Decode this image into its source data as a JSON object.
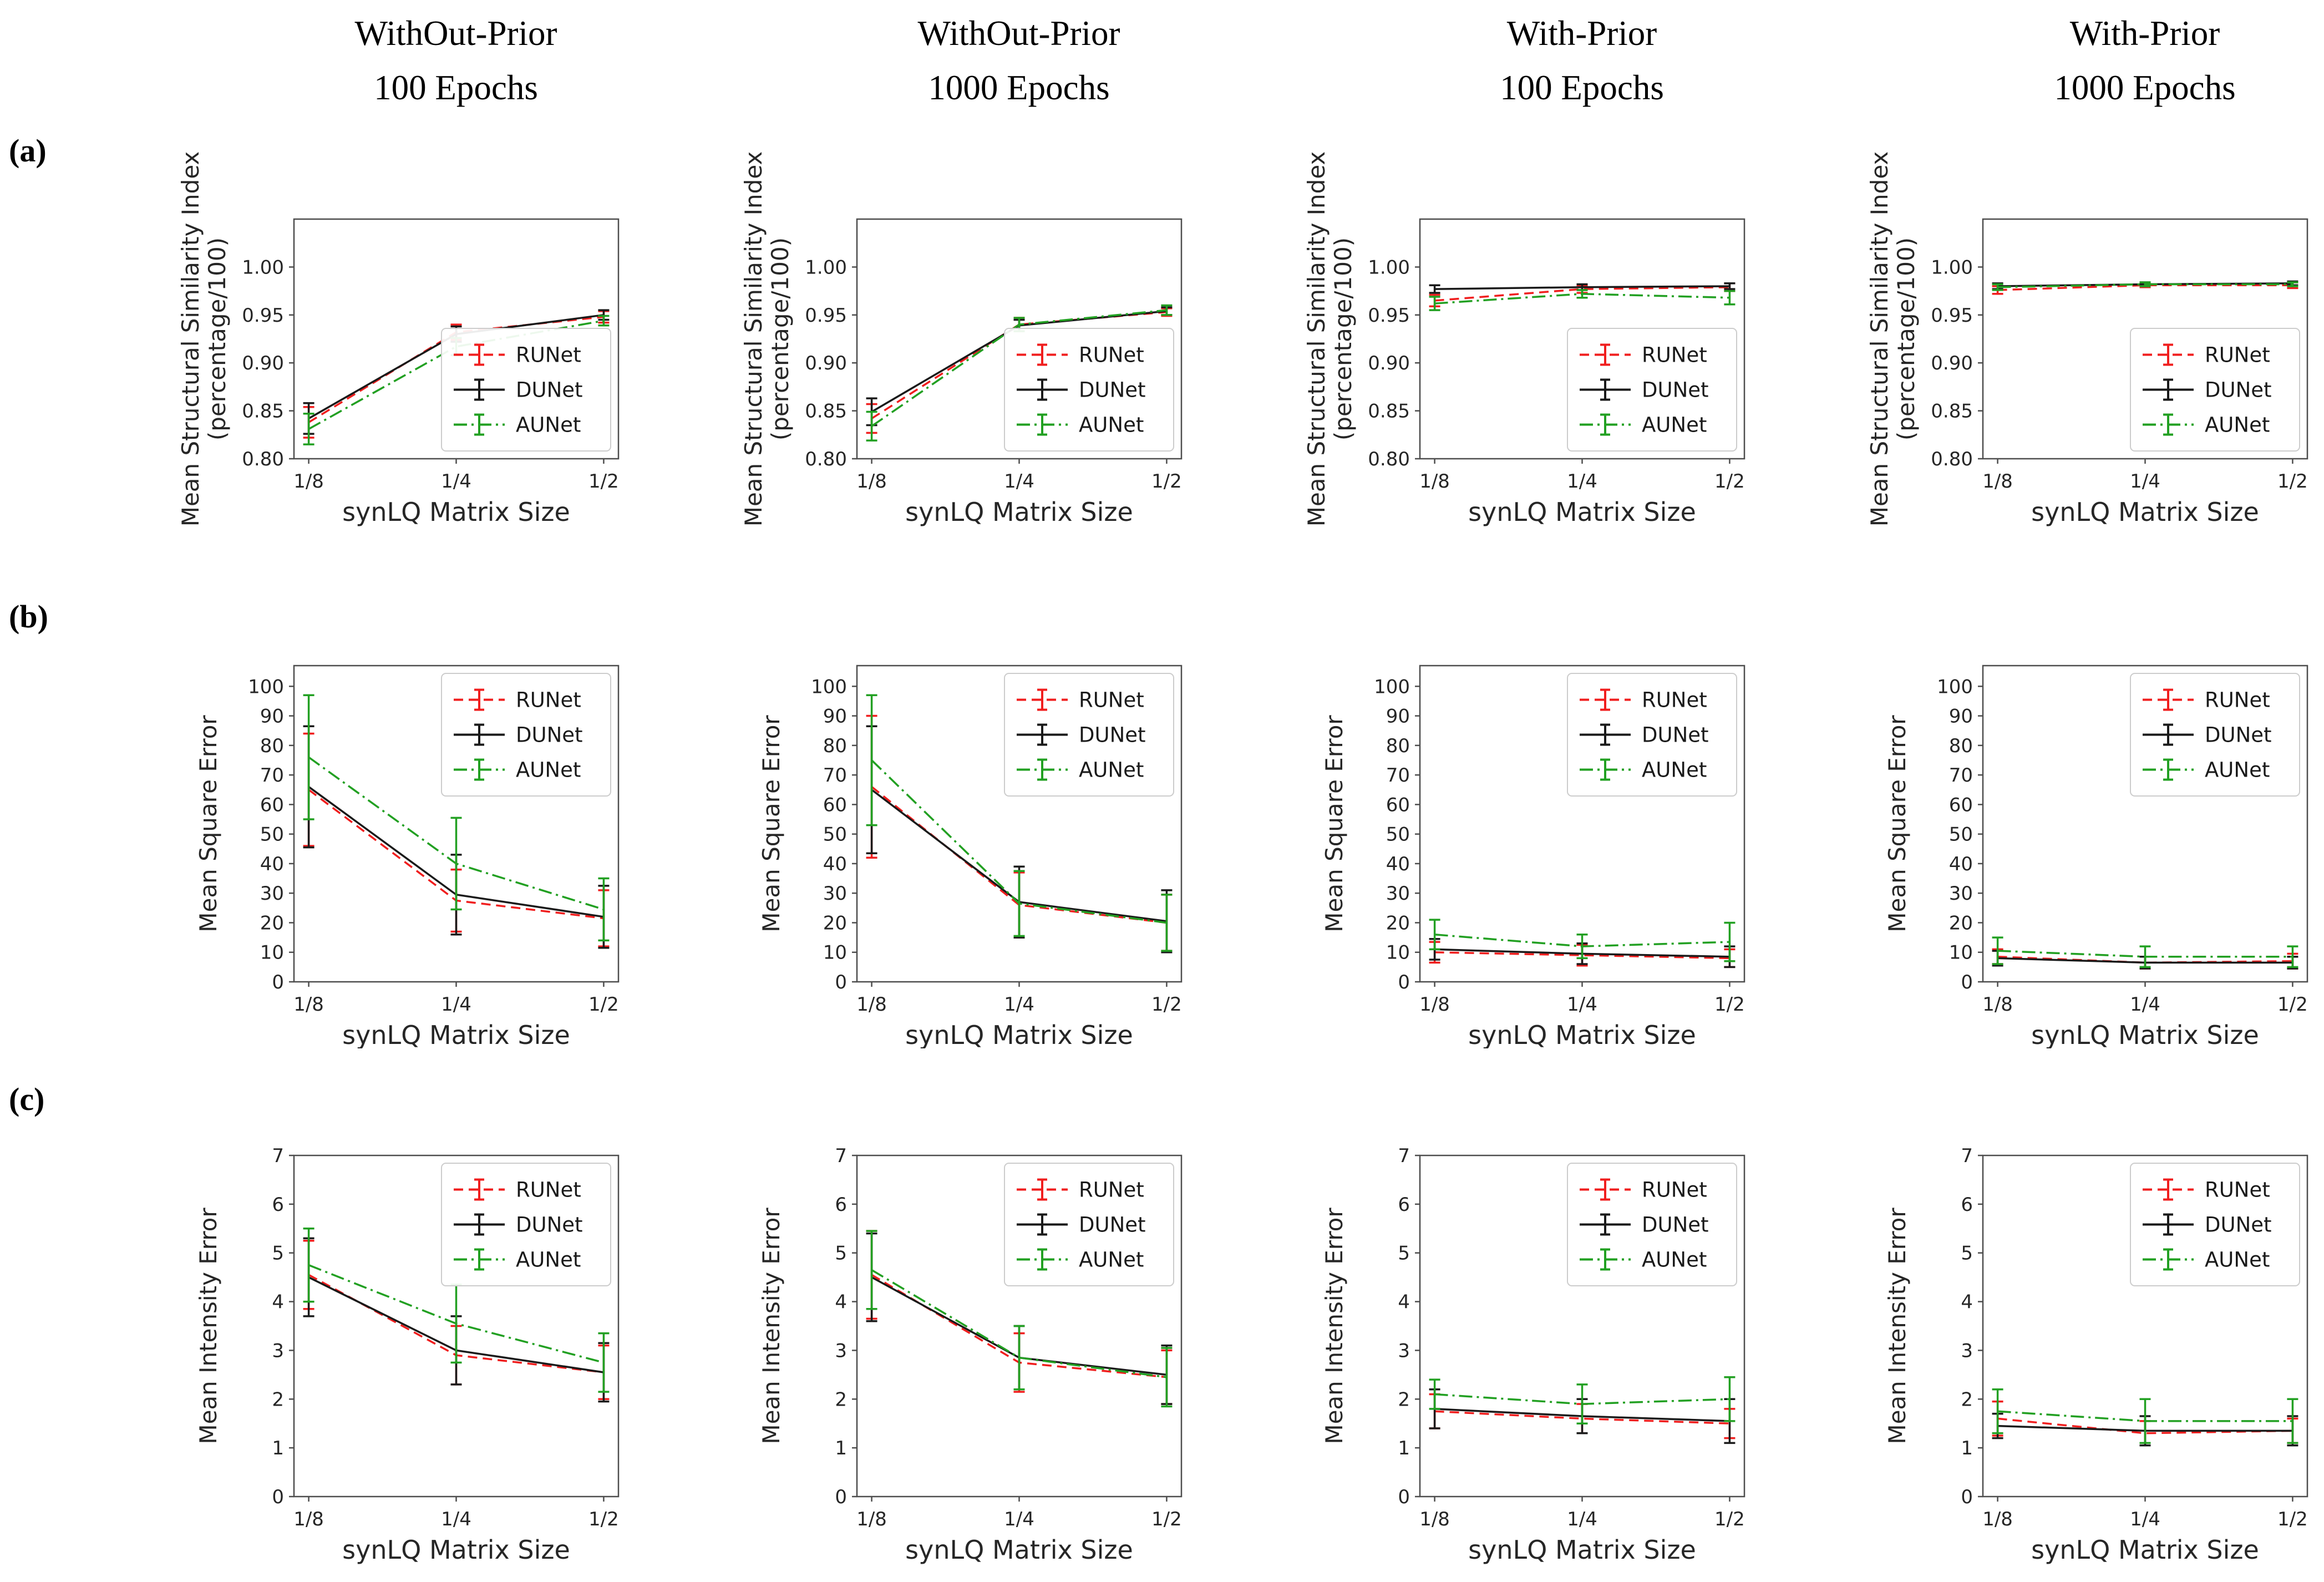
{
  "figure": {
    "columns": [
      {
        "title_lines": [
          "WithOut-Prior",
          "100 Epochs"
        ]
      },
      {
        "title_lines": [
          "WithOut-Prior",
          "1000 Epochs"
        ]
      },
      {
        "title_lines": [
          "With-Prior",
          "100 Epochs"
        ]
      },
      {
        "title_lines": [
          "With-Prior",
          "1000 Epochs"
        ]
      }
    ],
    "rows": [
      {
        "label": "(a)",
        "metric": "Mean Structural Similarity Index (percentage/100)"
      },
      {
        "label": "(b)",
        "metric": "Mean Square Error"
      },
      {
        "label": "(c)",
        "metric": "Mean Intensity Error"
      }
    ],
    "xlabel": "synLQ Matrix Size",
    "x_ticklabels": [
      "1/8",
      "1/4",
      "1/2"
    ]
  },
  "series_styles": [
    {
      "name": "RUNet",
      "color": "#f01e1e",
      "dash": "dashed"
    },
    {
      "name": "DUNet",
      "color": "#1a1a1a",
      "dash": "solid"
    },
    {
      "name": "AUNet",
      "color": "#22a022",
      "dash": "dashdot"
    }
  ],
  "axis_colors": {
    "spine": "#4d4d4d",
    "text": "#262626"
  },
  "chart_data": [
    {
      "id": "a1",
      "row": "a",
      "col": 0,
      "type": "line",
      "title": "WithOut-Prior 100 Epochs",
      "xlabel": "synLQ Matrix Size",
      "ylabel_lines": [
        "Mean Structural Similarity Index",
        "(percentage/100)"
      ],
      "x_ticklabels": [
        "1/8",
        "1/4",
        "1/2"
      ],
      "ylim": [
        0.8,
        1.05
      ],
      "yticks": [
        0.8,
        0.85,
        0.9,
        0.95,
        1.0
      ],
      "ytick_labels": [
        "0.80",
        "0.85",
        "0.90",
        "0.95",
        "1.00"
      ],
      "legend_position": "lower right",
      "series": [
        {
          "name": "RUNet",
          "values": [
            0.838,
            0.932,
            0.948
          ],
          "err": [
            0.016,
            0.008,
            0.006
          ]
        },
        {
          "name": "DUNet",
          "values": [
            0.842,
            0.93,
            0.95
          ],
          "err": [
            0.016,
            0.008,
            0.005
          ]
        },
        {
          "name": "AUNet",
          "values": [
            0.831,
            0.917,
            0.944
          ],
          "err": [
            0.016,
            0.009,
            0.005
          ]
        }
      ]
    },
    {
      "id": "a2",
      "row": "a",
      "col": 1,
      "type": "line",
      "title": "WithOut-Prior 1000 Epochs",
      "xlabel": "synLQ Matrix Size",
      "ylabel_lines": [
        "Mean Structural Similarity Index",
        "(percentage/100)"
      ],
      "x_ticklabels": [
        "1/8",
        "1/4",
        "1/2"
      ],
      "ylim": [
        0.8,
        1.05
      ],
      "yticks": [
        0.8,
        0.85,
        0.9,
        0.95,
        1.0
      ],
      "ytick_labels": [
        "0.80",
        "0.85",
        "0.90",
        "0.95",
        "1.00"
      ],
      "legend_position": "lower right",
      "series": [
        {
          "name": "RUNet",
          "values": [
            0.842,
            0.94,
            0.953
          ],
          "err": [
            0.015,
            0.007,
            0.004
          ]
        },
        {
          "name": "DUNet",
          "values": [
            0.849,
            0.939,
            0.954
          ],
          "err": [
            0.014,
            0.006,
            0.004
          ]
        },
        {
          "name": "AUNet",
          "values": [
            0.834,
            0.94,
            0.955
          ],
          "err": [
            0.015,
            0.007,
            0.005
          ]
        }
      ]
    },
    {
      "id": "a3",
      "row": "a",
      "col": 2,
      "type": "line",
      "title": "With-Prior 100 Epochs",
      "xlabel": "synLQ Matrix Size",
      "ylabel_lines": [
        "Mean Structural Similarity Index",
        "(percentage/100)"
      ],
      "x_ticklabels": [
        "1/8",
        "1/4",
        "1/2"
      ],
      "ylim": [
        0.8,
        1.05
      ],
      "yticks": [
        0.8,
        0.85,
        0.9,
        0.95,
        1.0
      ],
      "ytick_labels": [
        "0.80",
        "0.85",
        "0.90",
        "0.95",
        "1.00"
      ],
      "legend_position": "lower right",
      "series": [
        {
          "name": "RUNet",
          "values": [
            0.965,
            0.977,
            0.979
          ],
          "err": [
            0.006,
            0.004,
            0.004
          ]
        },
        {
          "name": "DUNet",
          "values": [
            0.977,
            0.979,
            0.98
          ],
          "err": [
            0.004,
            0.003,
            0.003
          ]
        },
        {
          "name": "AUNet",
          "values": [
            0.962,
            0.972,
            0.968
          ],
          "err": [
            0.007,
            0.004,
            0.007
          ]
        }
      ]
    },
    {
      "id": "a4",
      "row": "a",
      "col": 3,
      "type": "line",
      "title": "With-Prior 1000 Epochs",
      "xlabel": "synLQ Matrix Size",
      "ylabel_lines": [
        "Mean Structural Similarity Index",
        "(percentage/100)"
      ],
      "x_ticklabels": [
        "1/8",
        "1/4",
        "1/2"
      ],
      "ylim": [
        0.8,
        1.05
      ],
      "yticks": [
        0.8,
        0.85,
        0.9,
        0.95,
        1.0
      ],
      "ytick_labels": [
        "0.80",
        "0.85",
        "0.90",
        "0.95",
        "1.00"
      ],
      "legend_position": "lower right",
      "series": [
        {
          "name": "RUNet",
          "values": [
            0.976,
            0.981,
            0.981
          ],
          "err": [
            0.004,
            0.002,
            0.003
          ]
        },
        {
          "name": "DUNet",
          "values": [
            0.98,
            0.982,
            0.983
          ],
          "err": [
            0.003,
            0.002,
            0.002
          ]
        },
        {
          "name": "AUNet",
          "values": [
            0.979,
            0.982,
            0.982
          ],
          "err": [
            0.003,
            0.002,
            0.002
          ]
        }
      ]
    },
    {
      "id": "b1",
      "row": "b",
      "col": 0,
      "type": "line",
      "title": "WithOut-Prior 100 Epochs",
      "xlabel": "synLQ Matrix Size",
      "ylabel_lines": [
        "Mean Square Error"
      ],
      "x_ticklabels": [
        "1/8",
        "1/4",
        "1/2"
      ],
      "ylim": [
        0,
        107
      ],
      "yticks": [
        0,
        10,
        20,
        30,
        40,
        50,
        60,
        70,
        80,
        90,
        100
      ],
      "ytick_labels": [
        "0",
        "10",
        "20",
        "30",
        "40",
        "50",
        "60",
        "70",
        "80",
        "90",
        "100"
      ],
      "legend_position": "upper right",
      "series": [
        {
          "name": "RUNet",
          "values": [
            65,
            27.5,
            21.5
          ],
          "err": [
            19,
            10.5,
            9.5
          ]
        },
        {
          "name": "DUNet",
          "values": [
            66,
            29.5,
            22
          ],
          "err": [
            20.5,
            13.5,
            10.5
          ]
        },
        {
          "name": "AUNet",
          "values": [
            76,
            40,
            24.5
          ],
          "err": [
            21,
            15.5,
            10.5
          ]
        }
      ]
    },
    {
      "id": "b2",
      "row": "b",
      "col": 1,
      "type": "line",
      "title": "WithOut-Prior 1000 Epochs",
      "xlabel": "synLQ Matrix Size",
      "ylabel_lines": [
        "Mean Square Error"
      ],
      "x_ticklabels": [
        "1/8",
        "1/4",
        "1/2"
      ],
      "ylim": [
        0,
        107
      ],
      "yticks": [
        0,
        10,
        20,
        30,
        40,
        50,
        60,
        70,
        80,
        90,
        100
      ],
      "ytick_labels": [
        "0",
        "10",
        "20",
        "30",
        "40",
        "50",
        "60",
        "70",
        "80",
        "90",
        "100"
      ],
      "legend_position": "upper right",
      "series": [
        {
          "name": "RUNet",
          "values": [
            66,
            26,
            20
          ],
          "err": [
            24,
            11,
            9.5
          ]
        },
        {
          "name": "DUNet",
          "values": [
            65,
            27,
            20.5
          ],
          "err": [
            21.5,
            12,
            10.5
          ]
        },
        {
          "name": "AUNet",
          "values": [
            75,
            26.5,
            20
          ],
          "err": [
            22,
            11,
            9.5
          ]
        }
      ]
    },
    {
      "id": "b3",
      "row": "b",
      "col": 2,
      "type": "line",
      "title": "With-Prior 100 Epochs",
      "xlabel": "synLQ Matrix Size",
      "ylabel_lines": [
        "Mean Square Error"
      ],
      "x_ticklabels": [
        "1/8",
        "1/4",
        "1/2"
      ],
      "ylim": [
        0,
        107
      ],
      "yticks": [
        0,
        10,
        20,
        30,
        40,
        50,
        60,
        70,
        80,
        90,
        100
      ],
      "ytick_labels": [
        "0",
        "10",
        "20",
        "30",
        "40",
        "50",
        "60",
        "70",
        "80",
        "90",
        "100"
      ],
      "legend_position": "upper right",
      "series": [
        {
          "name": "RUNet",
          "values": [
            10,
            9,
            8
          ],
          "err": [
            3.5,
            3.5,
            3
          ]
        },
        {
          "name": "DUNet",
          "values": [
            11,
            9.5,
            8.5
          ],
          "err": [
            3.5,
            3.5,
            3.5
          ]
        },
        {
          "name": "AUNet",
          "values": [
            16,
            12,
            13.5
          ],
          "err": [
            5,
            4,
            6.5
          ]
        }
      ]
    },
    {
      "id": "b4",
      "row": "b",
      "col": 3,
      "type": "line",
      "title": "With-Prior 1000 Epochs",
      "xlabel": "synLQ Matrix Size",
      "ylabel_lines": [
        "Mean Square Error"
      ],
      "x_ticklabels": [
        "1/8",
        "1/4",
        "1/2"
      ],
      "ylim": [
        0,
        107
      ],
      "yticks": [
        0,
        10,
        20,
        30,
        40,
        50,
        60,
        70,
        80,
        90,
        100
      ],
      "ytick_labels": [
        "0",
        "10",
        "20",
        "30",
        "40",
        "50",
        "60",
        "70",
        "80",
        "90",
        "100"
      ],
      "legend_position": "upper right",
      "series": [
        {
          "name": "RUNet",
          "values": [
            8.5,
            6.5,
            7
          ],
          "err": [
            2.5,
            2,
            2.5
          ]
        },
        {
          "name": "DUNet",
          "values": [
            8,
            6.5,
            6.5
          ],
          "err": [
            2.5,
            2,
            2
          ]
        },
        {
          "name": "AUNet",
          "values": [
            10.5,
            8.5,
            8.5
          ],
          "err": [
            4.5,
            3.5,
            3.5
          ]
        }
      ]
    },
    {
      "id": "c1",
      "row": "c",
      "col": 0,
      "type": "line",
      "title": "WithOut-Prior 100 Epochs",
      "xlabel": "synLQ Matrix Size",
      "ylabel_lines": [
        "Mean Intensity Error"
      ],
      "x_ticklabels": [
        "1/8",
        "1/4",
        "1/2"
      ],
      "ylim": [
        0,
        7
      ],
      "yticks": [
        0,
        1,
        2,
        3,
        4,
        5,
        6,
        7
      ],
      "ytick_labels": [
        "0",
        "1",
        "2",
        "3",
        "4",
        "5",
        "6",
        "7"
      ],
      "legend_position": "upper right",
      "series": [
        {
          "name": "RUNet",
          "values": [
            4.55,
            2.9,
            2.55
          ],
          "err": [
            0.7,
            0.6,
            0.55
          ]
        },
        {
          "name": "DUNet",
          "values": [
            4.5,
            3.0,
            2.55
          ],
          "err": [
            0.8,
            0.7,
            0.6
          ]
        },
        {
          "name": "AUNet",
          "values": [
            4.75,
            3.55,
            2.75
          ],
          "err": [
            0.75,
            0.8,
            0.6
          ]
        }
      ]
    },
    {
      "id": "c2",
      "row": "c",
      "col": 1,
      "type": "line",
      "title": "WithOut-Prior 1000 Epochs",
      "xlabel": "synLQ Matrix Size",
      "ylabel_lines": [
        "Mean Intensity Error"
      ],
      "x_ticklabels": [
        "1/8",
        "1/4",
        "1/2"
      ],
      "ylim": [
        0,
        7
      ],
      "yticks": [
        0,
        1,
        2,
        3,
        4,
        5,
        6,
        7
      ],
      "ytick_labels": [
        "0",
        "1",
        "2",
        "3",
        "4",
        "5",
        "6",
        "7"
      ],
      "legend_position": "upper right",
      "series": [
        {
          "name": "RUNet",
          "values": [
            4.55,
            2.75,
            2.45
          ],
          "err": [
            0.9,
            0.6,
            0.55
          ]
        },
        {
          "name": "DUNet",
          "values": [
            4.5,
            2.85,
            2.5
          ],
          "err": [
            0.9,
            0.65,
            0.6
          ]
        },
        {
          "name": "AUNet",
          "values": [
            4.65,
            2.85,
            2.45
          ],
          "err": [
            0.8,
            0.65,
            0.6
          ]
        }
      ]
    },
    {
      "id": "c3",
      "row": "c",
      "col": 2,
      "type": "line",
      "title": "With-Prior 100 Epochs",
      "xlabel": "synLQ Matrix Size",
      "ylabel_lines": [
        "Mean Intensity Error"
      ],
      "x_ticklabels": [
        "1/8",
        "1/4",
        "1/2"
      ],
      "ylim": [
        0,
        7
      ],
      "yticks": [
        0,
        1,
        2,
        3,
        4,
        5,
        6,
        7
      ],
      "ytick_labels": [
        "0",
        "1",
        "2",
        "3",
        "4",
        "5",
        "6",
        "7"
      ],
      "legend_position": "upper right",
      "series": [
        {
          "name": "RUNet",
          "values": [
            1.75,
            1.6,
            1.5
          ],
          "err": [
            0.35,
            0.3,
            0.3
          ]
        },
        {
          "name": "DUNet",
          "values": [
            1.8,
            1.65,
            1.55
          ],
          "err": [
            0.4,
            0.35,
            0.45
          ]
        },
        {
          "name": "AUNet",
          "values": [
            2.1,
            1.9,
            2.0
          ],
          "err": [
            0.3,
            0.4,
            0.45
          ]
        }
      ]
    },
    {
      "id": "c4",
      "row": "c",
      "col": 3,
      "type": "line",
      "title": "With-Prior 1000 Epochs",
      "xlabel": "synLQ Matrix Size",
      "ylabel_lines": [
        "Mean Intensity Error"
      ],
      "x_ticklabels": [
        "1/8",
        "1/4",
        "1/2"
      ],
      "ylim": [
        0,
        7
      ],
      "yticks": [
        0,
        1,
        2,
        3,
        4,
        5,
        6,
        7
      ],
      "ytick_labels": [
        "0",
        "1",
        "2",
        "3",
        "4",
        "5",
        "6",
        "7"
      ],
      "legend_position": "upper right",
      "series": [
        {
          "name": "RUNet",
          "values": [
            1.6,
            1.3,
            1.35
          ],
          "err": [
            0.35,
            0.25,
            0.25
          ]
        },
        {
          "name": "DUNet",
          "values": [
            1.45,
            1.35,
            1.35
          ],
          "err": [
            0.25,
            0.3,
            0.3
          ]
        },
        {
          "name": "AUNet",
          "values": [
            1.75,
            1.55,
            1.55
          ],
          "err": [
            0.45,
            0.45,
            0.45
          ]
        }
      ]
    }
  ]
}
